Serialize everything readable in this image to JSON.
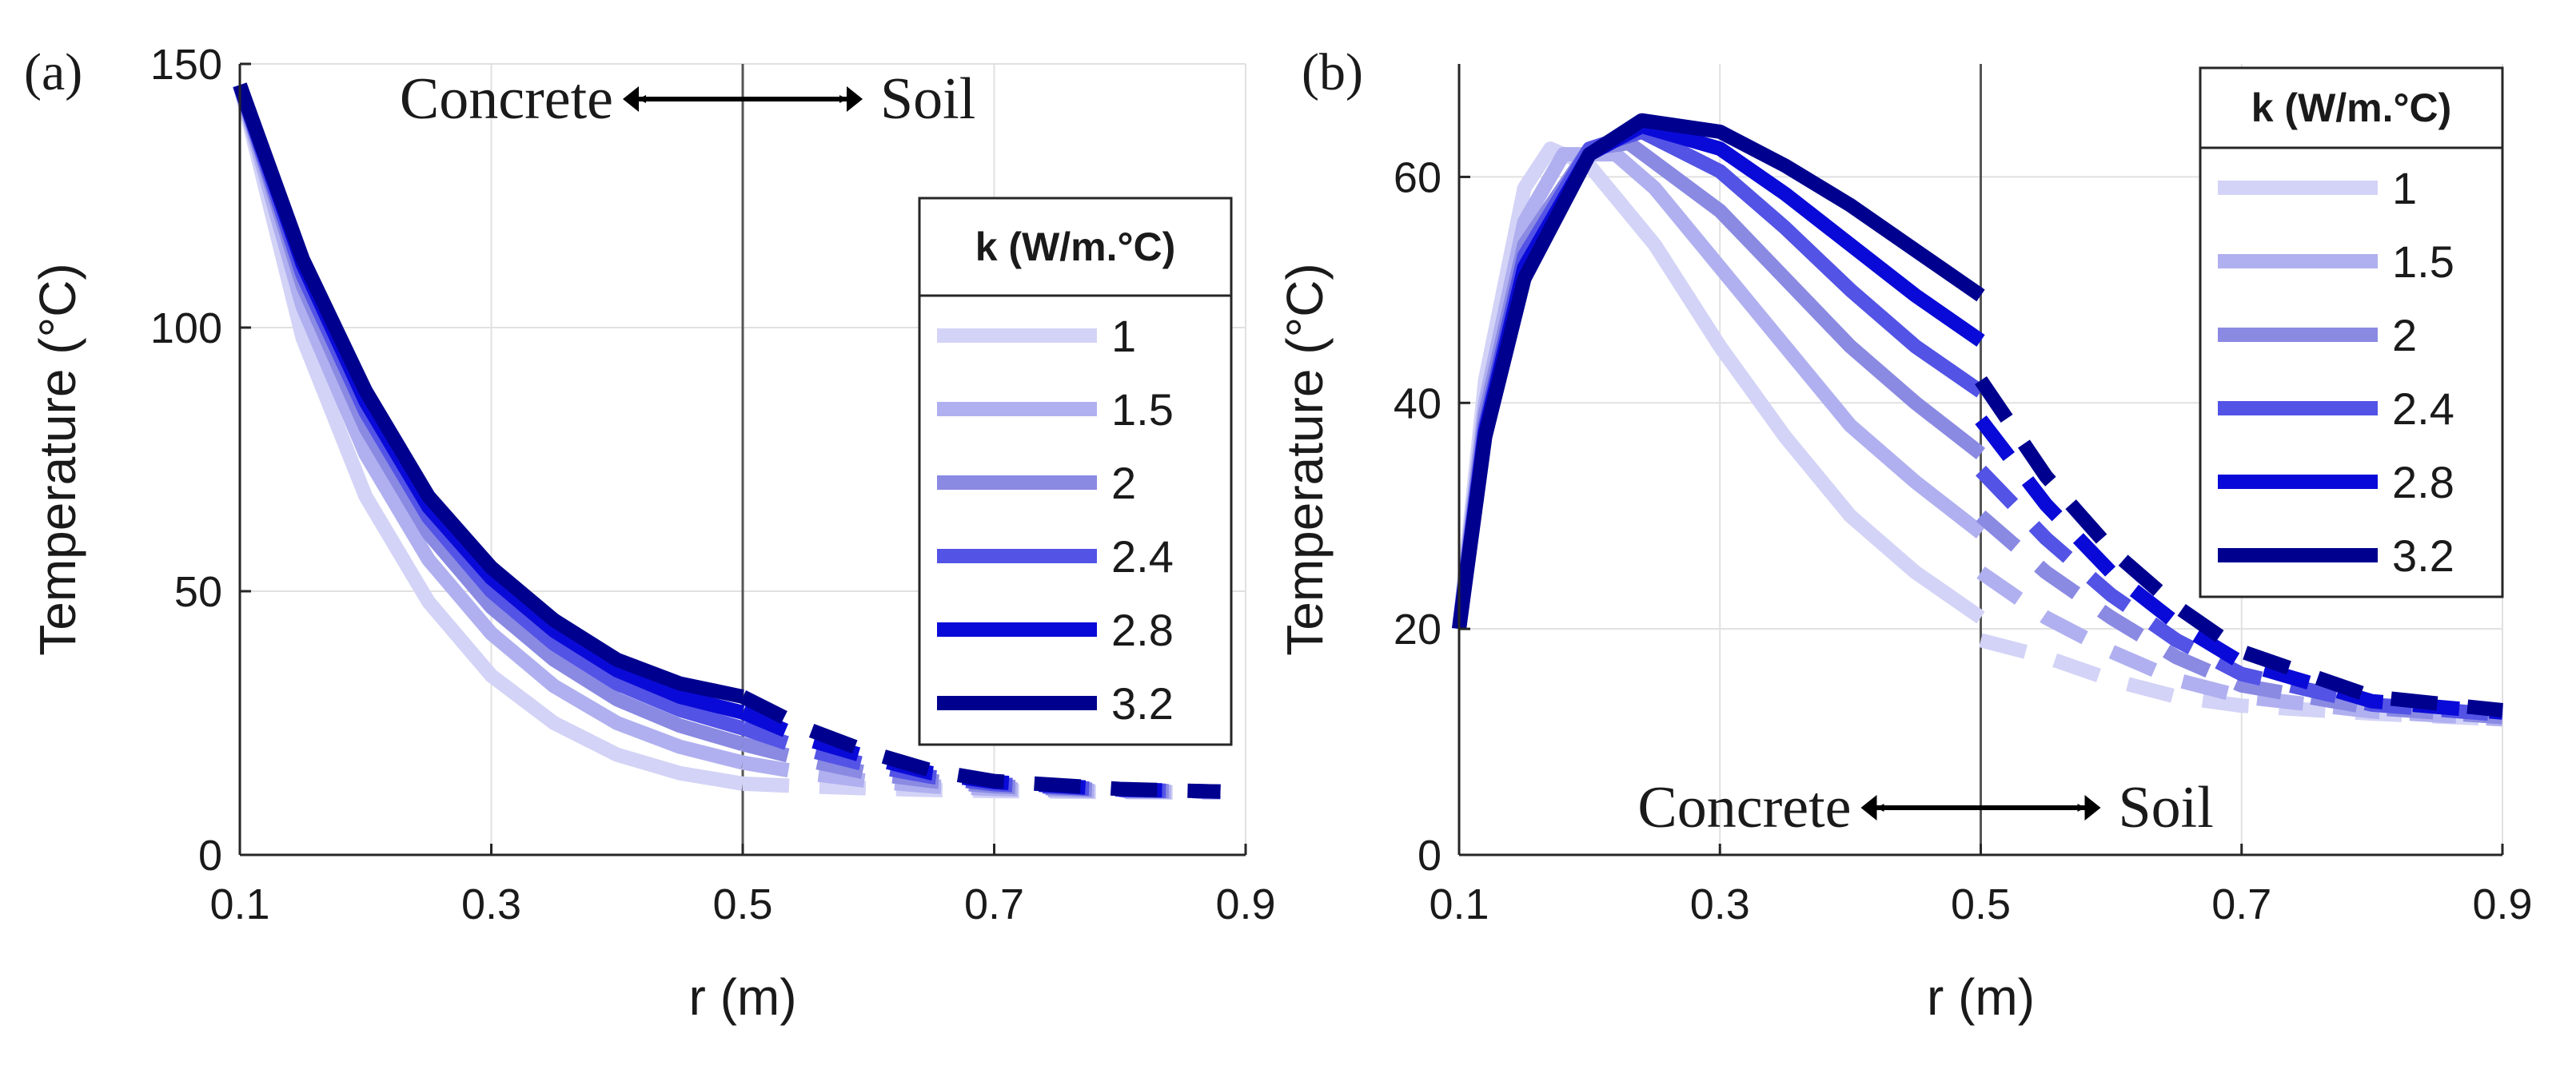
{
  "chart_data": [
    {
      "panel": "(a)",
      "type": "line",
      "xlabel": "r (m)",
      "ylabel": "Temperature (°C)",
      "xlim": [
        0.1,
        0.9
      ],
      "ylim": [
        0,
        150
      ],
      "xticks": [
        "0.1",
        "0.3",
        "0.5",
        "0.7",
        "0.9"
      ],
      "yticks": [
        "0",
        "50",
        "100",
        "150"
      ],
      "grid": true,
      "legend": {
        "title": "k (W/m.°C)",
        "position": "right"
      },
      "annotation": {
        "left": "Concrete",
        "right": "Soil",
        "boundary_r": 0.5
      },
      "series": [
        {
          "name": "1",
          "color": "#d3d3f7",
          "concrete": [
            [
              0.1,
              146
            ],
            [
              0.15,
              98
            ],
            [
              0.2,
              68
            ],
            [
              0.25,
              48
            ],
            [
              0.3,
              34
            ],
            [
              0.35,
              25
            ],
            [
              0.4,
              19
            ],
            [
              0.45,
              15.5
            ],
            [
              0.5,
              13.5
            ]
          ],
          "soil": [
            [
              0.5,
              13.5
            ],
            [
              0.55,
              13
            ],
            [
              0.6,
              12.6
            ],
            [
              0.65,
              12.3
            ],
            [
              0.7,
              12.1
            ],
            [
              0.8,
              11.9
            ],
            [
              0.88,
              11.8
            ]
          ]
        },
        {
          "name": "1.5",
          "color": "#b0b0f0",
          "concrete": [
            [
              0.1,
              146
            ],
            [
              0.15,
              104
            ],
            [
              0.2,
              76
            ],
            [
              0.25,
              56
            ],
            [
              0.3,
              42
            ],
            [
              0.35,
              32
            ],
            [
              0.4,
              25
            ],
            [
              0.45,
              20.5
            ],
            [
              0.5,
              17.5
            ]
          ],
          "soil": [
            [
              0.5,
              17.5
            ],
            [
              0.55,
              15.5
            ],
            [
              0.6,
              14
            ],
            [
              0.65,
              13
            ],
            [
              0.7,
              12.5
            ],
            [
              0.8,
              12
            ],
            [
              0.88,
              11.9
            ]
          ]
        },
        {
          "name": "2",
          "color": "#8a8ae3",
          "concrete": [
            [
              0.1,
              146
            ],
            [
              0.15,
              108
            ],
            [
              0.2,
              81
            ],
            [
              0.25,
              61
            ],
            [
              0.3,
              47
            ],
            [
              0.35,
              37
            ],
            [
              0.4,
              29.5
            ],
            [
              0.45,
              24.5
            ],
            [
              0.5,
              21
            ]
          ],
          "soil": [
            [
              0.5,
              21
            ],
            [
              0.55,
              18
            ],
            [
              0.6,
              15.5
            ],
            [
              0.65,
              14
            ],
            [
              0.7,
              13
            ],
            [
              0.8,
              12.2
            ],
            [
              0.88,
              12
            ]
          ]
        },
        {
          "name": "2.4",
          "color": "#5353e6",
          "concrete": [
            [
              0.1,
              146
            ],
            [
              0.15,
              110
            ],
            [
              0.2,
              84
            ],
            [
              0.25,
              64
            ],
            [
              0.3,
              50
            ],
            [
              0.35,
              40
            ],
            [
              0.4,
              32.5
            ],
            [
              0.45,
              27.5
            ],
            [
              0.5,
              24
            ]
          ],
          "soil": [
            [
              0.5,
              24
            ],
            [
              0.55,
              20
            ],
            [
              0.6,
              17
            ],
            [
              0.65,
              14.8
            ],
            [
              0.7,
              13.4
            ],
            [
              0.8,
              12.3
            ],
            [
              0.88,
              12
            ]
          ]
        },
        {
          "name": "2.8",
          "color": "#0a0ad8",
          "concrete": [
            [
              0.1,
              146
            ],
            [
              0.15,
              112
            ],
            [
              0.2,
              86
            ],
            [
              0.25,
              66
            ],
            [
              0.3,
              52.5
            ],
            [
              0.35,
              42.5
            ],
            [
              0.4,
              35
            ],
            [
              0.45,
              30
            ],
            [
              0.5,
              27
            ]
          ],
          "soil": [
            [
              0.5,
              27
            ],
            [
              0.55,
              22
            ],
            [
              0.6,
              18.5
            ],
            [
              0.65,
              15.5
            ],
            [
              0.7,
              13.8
            ],
            [
              0.8,
              12.4
            ],
            [
              0.88,
              12
            ]
          ]
        },
        {
          "name": "3.2",
          "color": "#00008f",
          "concrete": [
            [
              0.1,
              146
            ],
            [
              0.15,
              113
            ],
            [
              0.2,
              88
            ],
            [
              0.25,
              68
            ],
            [
              0.3,
              54.5
            ],
            [
              0.35,
              44.5
            ],
            [
              0.4,
              37
            ],
            [
              0.45,
              32.5
            ],
            [
              0.5,
              30
            ]
          ],
          "soil": [
            [
              0.5,
              30
            ],
            [
              0.55,
              24
            ],
            [
              0.6,
              19.5
            ],
            [
              0.65,
              16
            ],
            [
              0.7,
              14
            ],
            [
              0.8,
              12.5
            ],
            [
              0.88,
              12
            ]
          ]
        }
      ]
    },
    {
      "panel": "(b)",
      "type": "line",
      "xlabel": "r (m)",
      "ylabel": "Temperature (°C)",
      "xlim": [
        0.1,
        0.9
      ],
      "ylim": [
        0,
        70
      ],
      "xticks": [
        "0.1",
        "0.3",
        "0.5",
        "0.7",
        "0.9"
      ],
      "yticks": [
        "0",
        "20",
        "40",
        "60"
      ],
      "grid": true,
      "legend": {
        "title": "k (W/m.°C)",
        "position": "top-right"
      },
      "annotation": {
        "left": "Concrete",
        "right": "Soil",
        "boundary_r": 0.5
      },
      "series": [
        {
          "name": "1",
          "color": "#d3d3f7",
          "concrete": [
            [
              0.1,
              20
            ],
            [
              0.12,
              42
            ],
            [
              0.15,
              59
            ],
            [
              0.17,
              62.5
            ],
            [
              0.2,
              61
            ],
            [
              0.25,
              54
            ],
            [
              0.3,
              45
            ],
            [
              0.35,
              37
            ],
            [
              0.4,
              30
            ],
            [
              0.45,
              25
            ],
            [
              0.5,
              21
            ]
          ],
          "soil": [
            [
              0.5,
              19
            ],
            [
              0.55,
              17.5
            ],
            [
              0.6,
              15.5
            ],
            [
              0.65,
              14
            ],
            [
              0.7,
              13.2
            ],
            [
              0.8,
              12.5
            ],
            [
              0.9,
              12
            ]
          ]
        },
        {
          "name": "1.5",
          "color": "#b0b0f0",
          "concrete": [
            [
              0.1,
              20
            ],
            [
              0.12,
              40
            ],
            [
              0.15,
              56
            ],
            [
              0.18,
              62
            ],
            [
              0.22,
              62
            ],
            [
              0.25,
              59
            ],
            [
              0.3,
              52
            ],
            [
              0.35,
              45
            ],
            [
              0.4,
              38
            ],
            [
              0.45,
              33
            ],
            [
              0.5,
              28.5
            ]
          ],
          "soil": [
            [
              0.5,
              25
            ],
            [
              0.55,
              21
            ],
            [
              0.6,
              18
            ],
            [
              0.65,
              15.5
            ],
            [
              0.7,
              14
            ],
            [
              0.8,
              12.7
            ],
            [
              0.9,
              12
            ]
          ]
        },
        {
          "name": "2",
          "color": "#8a8ae3",
          "concrete": [
            [
              0.1,
              20
            ],
            [
              0.12,
              39
            ],
            [
              0.15,
              54
            ],
            [
              0.2,
              62.5
            ],
            [
              0.23,
              63
            ],
            [
              0.3,
              57
            ],
            [
              0.35,
              51
            ],
            [
              0.4,
              45
            ],
            [
              0.45,
              40
            ],
            [
              0.5,
              35.5
            ]
          ],
          "soil": [
            [
              0.5,
              30
            ],
            [
              0.55,
              25
            ],
            [
              0.6,
              21
            ],
            [
              0.65,
              17.5
            ],
            [
              0.7,
              15
            ],
            [
              0.8,
              13
            ],
            [
              0.9,
              12.2
            ]
          ]
        },
        {
          "name": "2.4",
          "color": "#5353e6",
          "concrete": [
            [
              0.1,
              20
            ],
            [
              0.12,
              38
            ],
            [
              0.15,
              53
            ],
            [
              0.2,
              62.5
            ],
            [
              0.24,
              64
            ],
            [
              0.3,
              60.5
            ],
            [
              0.35,
              55.5
            ],
            [
              0.4,
              50
            ],
            [
              0.45,
              45
            ],
            [
              0.5,
              41
            ]
          ],
          "soil": [
            [
              0.5,
              34
            ],
            [
              0.55,
              28
            ],
            [
              0.6,
              23
            ],
            [
              0.65,
              19
            ],
            [
              0.7,
              16
            ],
            [
              0.8,
              13.3
            ],
            [
              0.9,
              12.4
            ]
          ]
        },
        {
          "name": "2.8",
          "color": "#0a0ad8",
          "concrete": [
            [
              0.1,
              20
            ],
            [
              0.12,
              37.5
            ],
            [
              0.15,
              52
            ],
            [
              0.2,
              62
            ],
            [
              0.24,
              64.5
            ],
            [
              0.3,
              62.5
            ],
            [
              0.35,
              58.5
            ],
            [
              0.4,
              54
            ],
            [
              0.45,
              49.5
            ],
            [
              0.5,
              45.5
            ]
          ],
          "soil": [
            [
              0.5,
              38.5
            ],
            [
              0.55,
              31
            ],
            [
              0.6,
              25
            ],
            [
              0.65,
              20.5
            ],
            [
              0.7,
              17
            ],
            [
              0.8,
              13.6
            ],
            [
              0.9,
              12.6
            ]
          ]
        },
        {
          "name": "3.2",
          "color": "#00008f",
          "concrete": [
            [
              0.1,
              20
            ],
            [
              0.12,
              37
            ],
            [
              0.15,
              51
            ],
            [
              0.2,
              62
            ],
            [
              0.24,
              65
            ],
            [
              0.3,
              64
            ],
            [
              0.35,
              61
            ],
            [
              0.4,
              57.5
            ],
            [
              0.45,
              53.5
            ],
            [
              0.5,
              49.5
            ]
          ],
          "soil": [
            [
              0.5,
              42
            ],
            [
              0.55,
              33.5
            ],
            [
              0.6,
              27
            ],
            [
              0.65,
              22
            ],
            [
              0.7,
              18
            ],
            [
              0.8,
              14
            ],
            [
              0.9,
              12.8
            ]
          ]
        }
      ]
    }
  ]
}
